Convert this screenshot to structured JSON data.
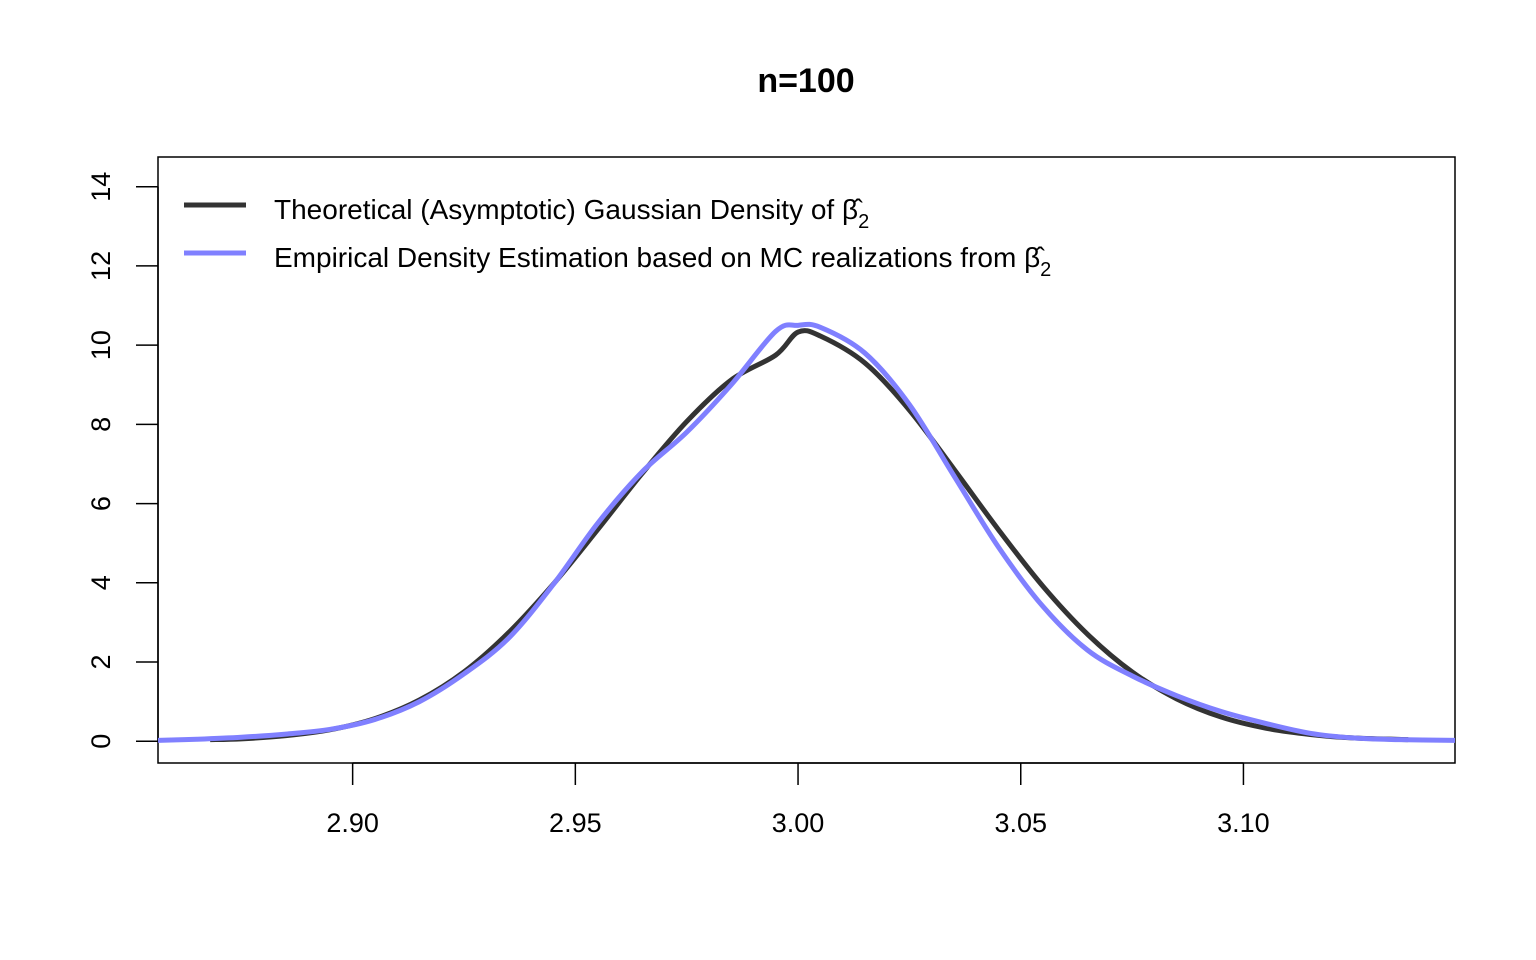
{
  "chart_data": {
    "type": "line",
    "title": "n=100",
    "xlabel": "",
    "ylabel": "",
    "xlim": [
      2.8563,
      3.1475
    ],
    "ylim": [
      -0.55,
      14.75
    ],
    "x_ticks": [
      2.9,
      2.95,
      3.0,
      3.05,
      3.1
    ],
    "x_tick_labels": [
      "2.90",
      "2.95",
      "3.00",
      "3.05",
      "3.10"
    ],
    "y_ticks": [
      0,
      2,
      4,
      6,
      8,
      10,
      12,
      14
    ],
    "y_tick_labels": [
      "0",
      "2",
      "4",
      "6",
      "8",
      "10",
      "12",
      "14"
    ],
    "grid": false,
    "legend_placement": "top-left",
    "series": [
      {
        "name": "Theoretical (Asymptotic) Gaussian Density of ",
        "name_symbol": "β̂",
        "name_subscript": "2",
        "color": "#333333",
        "x": [
          2.868,
          2.875,
          2.885,
          2.895,
          2.905,
          2.915,
          2.925,
          2.935,
          2.945,
          2.955,
          2.965,
          2.975,
          2.985,
          2.995,
          3.0,
          3.005,
          3.015,
          3.025,
          3.035,
          3.045,
          3.055,
          3.065,
          3.075,
          3.085,
          3.095,
          3.105,
          3.115,
          3.125,
          3.137
        ],
        "y": [
          0.04,
          0.06,
          0.14,
          0.29,
          0.57,
          1.04,
          1.75,
          2.74,
          3.96,
          5.34,
          6.76,
          8.07,
          9.12,
          9.75,
          10.33,
          10.23,
          9.55,
          8.36,
          6.87,
          5.34,
          3.91,
          2.7,
          1.75,
          1.07,
          0.61,
          0.33,
          0.17,
          0.08,
          0.04
        ]
      },
      {
        "name": "Empirical Density Estimation based on MC realizations from ",
        "name_symbol": "β̂",
        "name_subscript": "2",
        "color": "#8080ff",
        "x": [
          2.8563,
          2.865,
          2.875,
          2.885,
          2.895,
          2.905,
          2.915,
          2.925,
          2.935,
          2.945,
          2.955,
          2.965,
          2.975,
          2.985,
          2.995,
          3.0,
          3.005,
          3.015,
          3.025,
          3.035,
          3.045,
          3.055,
          3.065,
          3.075,
          3.085,
          3.095,
          3.105,
          3.115,
          3.125,
          3.135,
          3.1475
        ],
        "y": [
          0.02,
          0.05,
          0.1,
          0.18,
          0.3,
          0.55,
          1.0,
          1.7,
          2.6,
          3.95,
          5.5,
          6.8,
          7.8,
          9.0,
          10.35,
          10.5,
          10.45,
          9.8,
          8.5,
          6.7,
          4.9,
          3.4,
          2.3,
          1.65,
          1.15,
          0.75,
          0.45,
          0.2,
          0.08,
          0.04,
          0.02
        ]
      }
    ]
  }
}
